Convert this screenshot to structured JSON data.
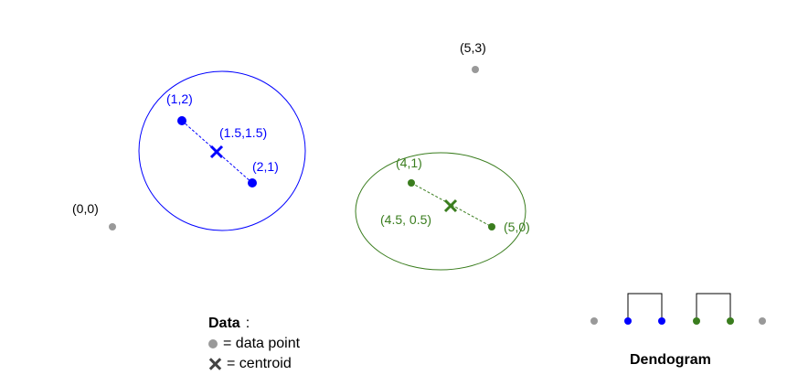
{
  "colors": {
    "gray": "#999999",
    "blue": "#0000ff",
    "green": "#3a7d1e",
    "black": "#000000"
  },
  "clusters": {
    "blue": {
      "points": [
        {
          "label": "(1,2)",
          "x": 1,
          "y": 2
        },
        {
          "label": "(2,1)",
          "x": 2,
          "y": 1
        }
      ],
      "centroid": {
        "label": "(1.5,1.5)",
        "x": 1.5,
        "y": 1.5
      }
    },
    "green": {
      "points": [
        {
          "label": "(4,1)",
          "x": 4,
          "y": 1
        },
        {
          "label": "(5,0)",
          "x": 5,
          "y": 0
        }
      ],
      "centroid": {
        "label": "(4.5, 0.5)",
        "x": 4.5,
        "y": 0.5
      }
    }
  },
  "unclustered": [
    {
      "label": "(0,0)",
      "x": 0,
      "y": 0
    },
    {
      "label": "(5,3)",
      "x": 5,
      "y": 3
    }
  ],
  "legend": {
    "title": "Data",
    "title_suffix": ":",
    "data_point": "= data point",
    "centroid": "= centroid"
  },
  "dendrogram": {
    "label": "Dendogram",
    "leaves": [
      "gray",
      "blue",
      "blue",
      "green",
      "green",
      "gray"
    ],
    "merges": [
      [
        1,
        2
      ],
      [
        3,
        4
      ]
    ]
  }
}
